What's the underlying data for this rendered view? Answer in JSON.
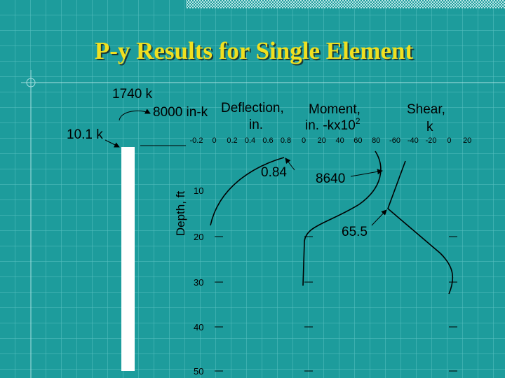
{
  "title": "P-y Results for Single Element",
  "loads": {
    "axial": "1740 k",
    "moment": "8000 in-k",
    "shear": "10.1 k"
  },
  "deflection": {
    "label": [
      "Deflection,",
      "in."
    ],
    "ticks": [
      "-0.2",
      "0",
      "0.2",
      "0.4",
      "0.6",
      "0.8"
    ],
    "peak": "0.84"
  },
  "moment": {
    "label": [
      "Moment,",
      "in. -kx10"
    ],
    "exponent": "2",
    "ticks": [
      "0",
      "20",
      "40",
      "60",
      "80"
    ],
    "peak": "8640"
  },
  "shear": {
    "label": [
      "Shear,",
      "k"
    ],
    "ticks": [
      "-60",
      "-40",
      "-20",
      "0",
      "20"
    ],
    "peak": "65.5"
  },
  "depth": {
    "label": "Depth, ft",
    "ticks": [
      "10",
      "20",
      "30",
      "40",
      "50"
    ]
  }
}
